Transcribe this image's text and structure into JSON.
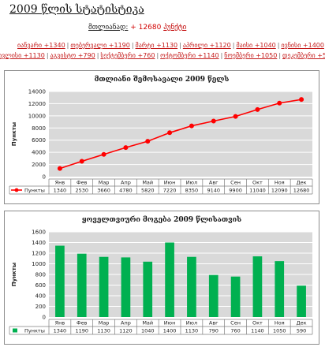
{
  "header": {
    "title": "2009 წლის სტატისტიკა",
    "total_label": "მთლიანად:",
    "total_value": "+ 12680",
    "total_unit": "პუნქტი"
  },
  "month_links": [
    [
      "იანვარი +1340",
      "თებერვალი +1190",
      "მარტი +1130",
      "აპრილი +1120",
      "მაისი +1040",
      "ივნისი +1400"
    ],
    [
      "ივლისი +1130",
      "აგვისტო +790",
      "სექტემბერი +760",
      "ოქტომბერი +1140",
      "ნოემბერი +1050",
      "დეკემბერი +590"
    ]
  ],
  "colors": {
    "line": "#ff0000",
    "line_marker_edge": "#ff0000",
    "bar": "#00b050",
    "plot_bg": "#d9d9d9",
    "grid": "#ffffff"
  },
  "chart_data": [
    {
      "type": "line",
      "title": "მთლიანი შემოსავალი 2009 წელს",
      "ylabel": "Пункты",
      "categories": [
        "Янв",
        "Фев",
        "Мар",
        "Апр",
        "Май",
        "Июн",
        "Июл",
        "Авг",
        "Сен",
        "Окт",
        "Ноя",
        "Дек"
      ],
      "series": [
        {
          "name": "Пункты",
          "values": [
            1340,
            2530,
            3660,
            4780,
            5820,
            7220,
            8350,
            9140,
            9900,
            11040,
            12090,
            12680
          ]
        }
      ],
      "ylim": [
        0,
        14000
      ],
      "yticks": [
        "0",
        "2000",
        "4000",
        "6000",
        "8000",
        "10000",
        "12000",
        "14000"
      ],
      "grid": true,
      "legend": "data-table"
    },
    {
      "type": "bar",
      "title": "ყოველთვიური მოგება 2009 წლისათვის",
      "ylabel": "Пункты",
      "categories": [
        "Янв",
        "Фев",
        "Мар",
        "Апр",
        "Май",
        "Июн",
        "Июл",
        "Авг",
        "Сен",
        "Окт",
        "Ноя",
        "Дек"
      ],
      "series": [
        {
          "name": "Пункты",
          "values": [
            1340,
            1190,
            1130,
            1120,
            1040,
            1400,
            1130,
            790,
            760,
            1140,
            1050,
            590
          ]
        }
      ],
      "ylim": [
        0,
        1600
      ],
      "yticks": [
        "0",
        "200",
        "400",
        "600",
        "800",
        "1000",
        "1200",
        "1400",
        "1600"
      ],
      "grid": true,
      "legend": "data-table"
    }
  ]
}
